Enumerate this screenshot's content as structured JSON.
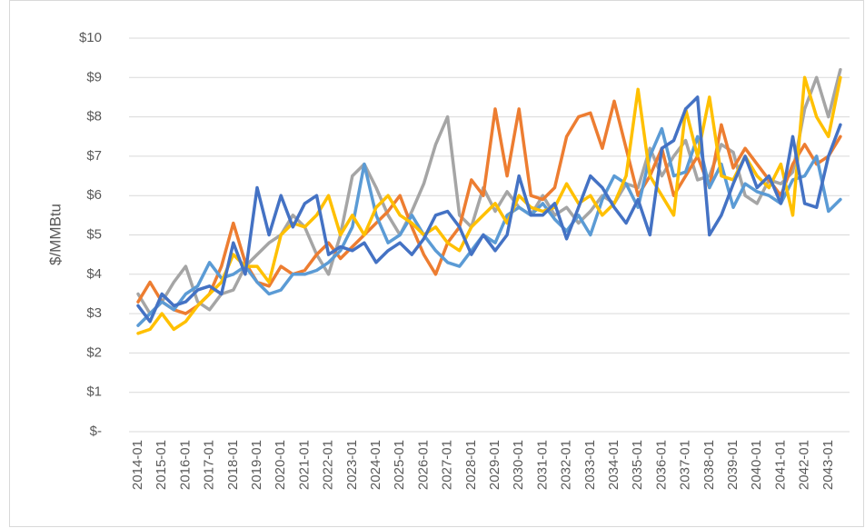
{
  "chart_data": {
    "type": "line",
    "y_label": "$/MMBtu",
    "categories": [
      "2014-01",
      null,
      "2015-01",
      null,
      "2016-01",
      null,
      "2017-01",
      null,
      "2018-01",
      null,
      "2019-01",
      null,
      "2020-01",
      null,
      "2021-01",
      null,
      "2022-01",
      null,
      "2023-01",
      null,
      "2024-01",
      null,
      "2025-01",
      null,
      "2026-01",
      null,
      "2027-01",
      null,
      "2028-01",
      null,
      "2029-01",
      null,
      "2030-01",
      null,
      "2031-01",
      null,
      "2032-01",
      null,
      "2033-01",
      null,
      "2034-01",
      null,
      "2035-01",
      null,
      "2036-01",
      null,
      "2037-01",
      null,
      "2038-01",
      null,
      "2039-01",
      null,
      "2040-01",
      null,
      "2041-01",
      null,
      "2042-01",
      null,
      "2043-01",
      null
    ],
    "ylim": [
      0,
      10
    ],
    "yticks": [
      {
        "value": 0,
        "label": "$-"
      },
      {
        "value": 1,
        "label": "$1"
      },
      {
        "value": 2,
        "label": "$2"
      },
      {
        "value": 3,
        "label": "$3"
      },
      {
        "value": 4,
        "label": "$4"
      },
      {
        "value": 5,
        "label": "$5"
      },
      {
        "value": 6,
        "label": "$6"
      },
      {
        "value": 7,
        "label": "$7"
      },
      {
        "value": 8,
        "label": "$8"
      },
      {
        "value": 9,
        "label": "$9"
      },
      {
        "value": 10,
        "label": "$10"
      }
    ],
    "grid": true,
    "series": [
      {
        "color": "#a5a5a5",
        "values": [
          3.5,
          3.0,
          3.3,
          3.8,
          4.2,
          3.3,
          3.1,
          3.5,
          3.6,
          4.2,
          4.5,
          4.8,
          5.0,
          5.5,
          5.2,
          4.5,
          4.0,
          5.0,
          6.5,
          6.8,
          6.2,
          5.5,
          5.0,
          5.6,
          6.3,
          7.3,
          8.0,
          5.5,
          5.2,
          6.2,
          5.6,
          6.1,
          5.7,
          5.5,
          6.0,
          5.5,
          5.7,
          5.3,
          5.6,
          6.0,
          5.8,
          6.3,
          6.2,
          7.2,
          6.5,
          7.0,
          7.4,
          6.4,
          6.5,
          7.3,
          7.1,
          6.0,
          5.8,
          6.4,
          6.3,
          6.6,
          8.2,
          9.0,
          8.0,
          9.2
        ]
      },
      {
        "color": "#ed7d31",
        "values": [
          3.3,
          3.8,
          3.3,
          3.1,
          3.0,
          3.2,
          3.5,
          4.2,
          5.3,
          4.3,
          3.8,
          3.7,
          4.2,
          4.0,
          4.1,
          4.5,
          4.8,
          4.4,
          4.7,
          5.0,
          5.3,
          5.6,
          6.0,
          5.2,
          4.5,
          4.0,
          4.8,
          5.2,
          6.4,
          6.0,
          8.2,
          6.5,
          8.2,
          6.0,
          5.9,
          6.2,
          7.5,
          8.0,
          8.1,
          7.2,
          8.4,
          7.2,
          6.0,
          6.5,
          7.2,
          6.0,
          6.5,
          7.0,
          6.2,
          7.8,
          6.7,
          7.2,
          6.8,
          6.4,
          6.0,
          6.8,
          7.3,
          6.8,
          7.0,
          7.5
        ]
      },
      {
        "color": "#5b9bd5",
        "values": [
          2.7,
          3.0,
          3.3,
          3.1,
          3.5,
          3.7,
          4.3,
          3.9,
          4.0,
          4.2,
          3.8,
          3.5,
          3.6,
          4.0,
          4.0,
          4.1,
          4.3,
          4.6,
          5.2,
          6.8,
          5.5,
          4.8,
          5.0,
          5.5,
          5.0,
          4.6,
          4.3,
          4.2,
          4.6,
          5.0,
          4.8,
          5.5,
          5.7,
          5.5,
          5.8,
          5.4,
          5.1,
          5.5,
          5.0,
          5.9,
          6.5,
          6.3,
          5.7,
          7.0,
          7.7,
          6.5,
          6.6,
          7.5,
          6.2,
          6.8,
          5.7,
          6.3,
          6.1,
          6.0,
          5.8,
          6.4,
          6.5,
          7.0,
          5.6,
          5.9
        ]
      },
      {
        "color": "#ffc000",
        "values": [
          2.5,
          2.6,
          3.0,
          2.6,
          2.8,
          3.2,
          3.5,
          3.8,
          4.5,
          4.2,
          4.2,
          3.8,
          5.0,
          5.3,
          5.2,
          5.5,
          6.0,
          5.0,
          5.5,
          5.0,
          5.7,
          6.0,
          5.5,
          5.3,
          5.0,
          5.2,
          4.8,
          4.6,
          5.2,
          5.5,
          5.8,
          5.3,
          6.0,
          5.7,
          5.6,
          5.7,
          6.3,
          5.8,
          6.0,
          5.5,
          5.8,
          6.5,
          8.7,
          6.5,
          6.0,
          5.5,
          8.2,
          7.0,
          8.5,
          6.5,
          6.4,
          7.0,
          6.5,
          6.2,
          6.8,
          5.5,
          9.0,
          8.0,
          7.5,
          9.0
        ]
      },
      {
        "color": "#4472c4",
        "values": [
          3.2,
          2.8,
          3.5,
          3.2,
          3.3,
          3.6,
          3.7,
          3.5,
          4.8,
          4.0,
          6.2,
          5.0,
          6.0,
          5.2,
          5.8,
          6.0,
          4.5,
          4.7,
          4.6,
          4.8,
          4.3,
          4.6,
          4.8,
          4.5,
          4.9,
          5.5,
          5.6,
          5.2,
          4.5,
          5.0,
          4.6,
          5.0,
          6.5,
          5.5,
          5.5,
          5.8,
          4.9,
          5.7,
          6.5,
          6.2,
          5.7,
          5.3,
          5.9,
          5.0,
          7.2,
          7.4,
          8.2,
          8.5,
          5.0,
          5.5,
          6.3,
          7.0,
          6.2,
          6.5,
          5.8,
          7.5,
          5.8,
          5.7,
          7.0,
          7.8
        ]
      }
    ]
  }
}
